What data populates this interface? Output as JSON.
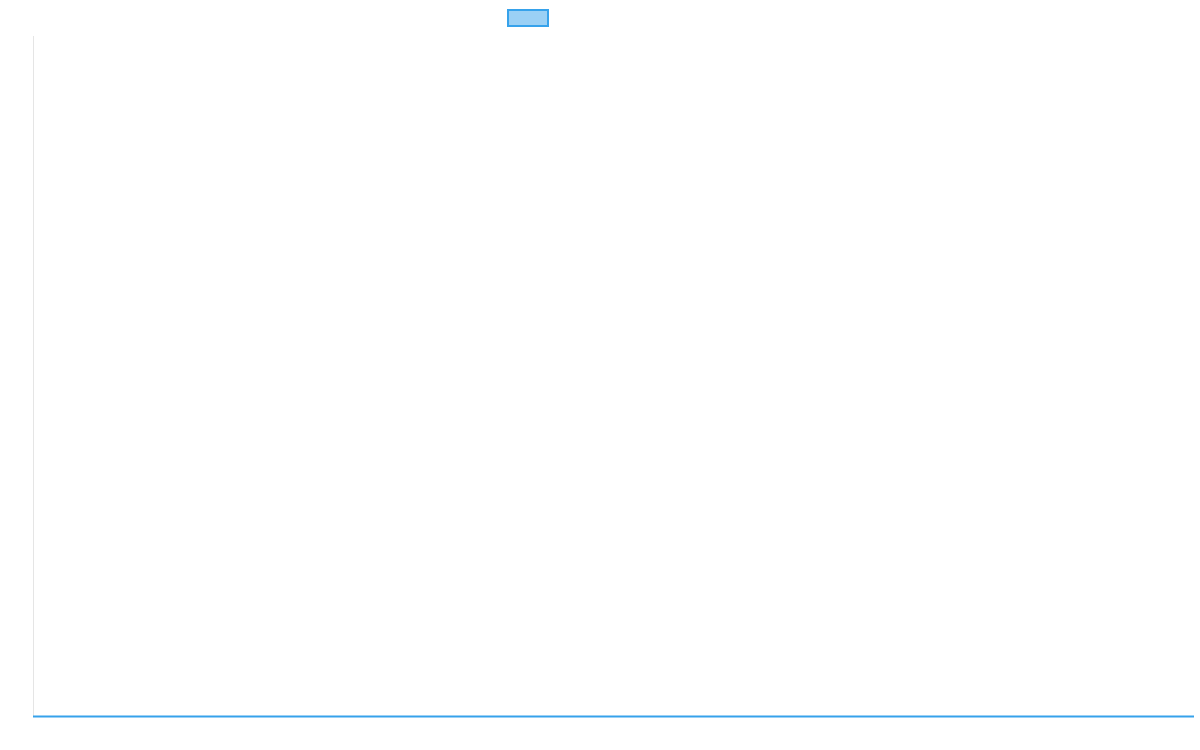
{
  "chart_data": {
    "type": "line",
    "legend": {
      "placement": "top",
      "entries": [
        {
          "label": "",
          "color": "#36a2eb",
          "fill": "#9ad0f5"
        }
      ]
    },
    "series": [
      {
        "color": "#36a2eb"
      }
    ],
    "grid": false
  }
}
